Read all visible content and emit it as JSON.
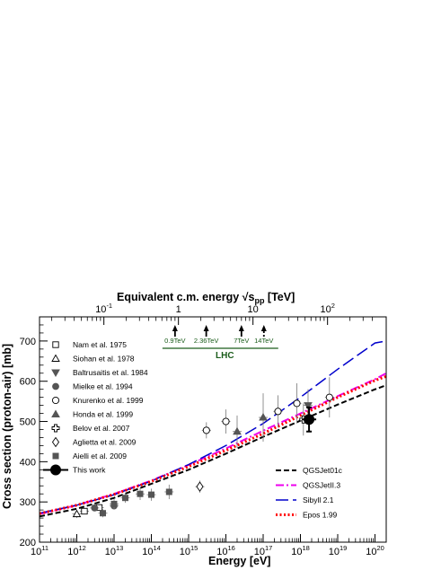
{
  "chart_data": {
    "type": "scatter",
    "xlabel": "Energy   [eV]",
    "ylabel": "Cross section (proton-air)   [mb]",
    "top_axis": {
      "label_main": "Equivalent c.m. energy ",
      "label_sqrt": "√s",
      "label_sub": "pp",
      "label_unit": "   [TeV]",
      "scale": "log",
      "ticks": [
        {
          "value": 0.1,
          "label": "10",
          "exp": "-1"
        },
        {
          "value": 1,
          "label": "1",
          "exp": ""
        },
        {
          "value": 10,
          "label": "10",
          "exp": ""
        },
        {
          "value": 100,
          "label": "10",
          "exp": "2"
        }
      ]
    },
    "x_scale": "log",
    "xlim": [
      100000000000.0,
      2e+20
    ],
    "ylim": [
      200,
      760
    ],
    "x_ticks": [
      {
        "value": 100000000000.0,
        "base": "10",
        "exp": "11"
      },
      {
        "value": 1000000000000.0,
        "base": "10",
        "exp": "12"
      },
      {
        "value": 10000000000000.0,
        "base": "10",
        "exp": "13"
      },
      {
        "value": 100000000000000.0,
        "base": "10",
        "exp": "14"
      },
      {
        "value": 1000000000000000.0,
        "base": "10",
        "exp": "15"
      },
      {
        "value": 1e+16,
        "base": "10",
        "exp": "16"
      },
      {
        "value": 1e+17,
        "base": "10",
        "exp": "17"
      },
      {
        "value": 1e+18,
        "base": "10",
        "exp": "18"
      },
      {
        "value": 1e+19,
        "base": "10",
        "exp": "19"
      },
      {
        "value": 1e+20,
        "base": "10",
        "exp": "20"
      }
    ],
    "y_ticks": [
      200,
      300,
      400,
      500,
      600,
      700
    ],
    "lhc": {
      "label": "LHC",
      "arrows": [
        {
          "sqrt_s": 0.9,
          "label": "0.9TeV",
          "dashed": false
        },
        {
          "sqrt_s": 2.36,
          "label": "2.36TeV",
          "dashed": false
        },
        {
          "sqrt_s": 7,
          "label": "7TeV",
          "dashed": false
        },
        {
          "sqrt_s": 14,
          "label": "14TeV",
          "dashed": true
        }
      ]
    },
    "data_legend": [
      {
        "name": "Nam et al. 1975",
        "marker": "open-square"
      },
      {
        "name": "Siohan et al. 1978",
        "marker": "open-triangle"
      },
      {
        "name": "Baltrusaitis et al. 1984",
        "marker": "filled-triangle-down"
      },
      {
        "name": "Mielke et al. 1994",
        "marker": "filled-circle"
      },
      {
        "name": "Knurenko et al. 1999",
        "marker": "open-circle"
      },
      {
        "name": "Honda et al. 1999",
        "marker": "filled-triangle"
      },
      {
        "name": "Belov et al. 2007",
        "marker": "open-cross"
      },
      {
        "name": "Aglietta et al. 2009",
        "marker": "open-diamond"
      },
      {
        "name": "Aielli et al. 2009",
        "marker": "filled-square"
      },
      {
        "name": "This work",
        "marker": "big-circle"
      }
    ],
    "model_legend": [
      {
        "name": "QGSJet01c",
        "color": "#000000",
        "dash": "6,3",
        "width": 2
      },
      {
        "name": "QGSJetII.3",
        "color": "#ee00ee",
        "dash": "9,3,2,3",
        "width": 2
      },
      {
        "name": "Sibyll 2.1",
        "color": "#0000cc",
        "dash": "14,5",
        "width": 1.5
      },
      {
        "name": "Epos 1.99",
        "color": "#ff0000",
        "dash": "2,2.5",
        "width": 3
      }
    ],
    "series": [
      {
        "name": "QGSJet01c",
        "x": [
          100000000000.0,
          1000000000000.0,
          10000000000000.0,
          100000000000000.0,
          1000000000000000.0,
          1e+16,
          1e+17,
          1e+18,
          1e+19,
          1e+20,
          2e+20
        ],
        "y": [
          264,
          283,
          310,
          345,
          380,
          420,
          462,
          502,
          542,
          580,
          590
        ]
      },
      {
        "name": "QGSJetII.3",
        "x": [
          100000000000.0,
          1000000000000.0,
          10000000000000.0,
          100000000000000.0,
          1000000000000000.0,
          1e+16,
          1e+17,
          1e+18,
          1e+19,
          1e+20,
          2e+20
        ],
        "y": [
          270,
          292,
          320,
          353,
          392,
          433,
          477,
          520,
          563,
          605,
          620
        ]
      },
      {
        "name": "Sibyll 2.1",
        "x": [
          100000000000.0,
          1000000000000.0,
          10000000000000.0,
          100000000000000.0,
          1000000000000000.0,
          1e+16,
          1e+17,
          1e+18,
          1e+19,
          1e+20,
          2e+20
        ],
        "y": [
          272,
          292,
          318,
          352,
          393,
          440,
          495,
          560,
          630,
          695,
          700
        ]
      },
      {
        "name": "Epos 1.99",
        "x": [
          100000000000.0,
          1000000000000.0,
          10000000000000.0,
          100000000000000.0,
          1000000000000000.0,
          1e+16,
          1e+17,
          1e+18,
          1e+19,
          1e+20,
          2e+20
        ],
        "y": [
          271,
          292,
          319,
          351,
          388,
          428,
          470,
          515,
          560,
          602,
          612
        ]
      }
    ],
    "measurements": [
      {
        "set": "Nam et al. 1975",
        "marker": "open-square",
        "points": [
          {
            "x": 1600000000000.0,
            "y": 277,
            "err": 6
          },
          {
            "x": 4000000000000.0,
            "y": 286,
            "err": 6
          }
        ]
      },
      {
        "set": "Siohan et al. 1978",
        "marker": "open-triangle",
        "points": [
          {
            "x": 1000000000000.0,
            "y": 270,
            "err": 10
          }
        ]
      },
      {
        "set": "Baltrusaitis et al. 1984",
        "marker": "filled-triangle-down",
        "points": [
          {
            "x": 1.6e+18,
            "y": 540,
            "err": 40
          }
        ]
      },
      {
        "set": "Mielke et al. 1994",
        "marker": "filled-circle",
        "points": [
          {
            "x": 3000000000000.0,
            "y": 285,
            "err": 6
          },
          {
            "x": 10000000000000.0,
            "y": 290,
            "err": 6
          }
        ]
      },
      {
        "set": "Knurenko et al. 1999",
        "marker": "open-circle",
        "points": [
          {
            "x": 3000000000000000.0,
            "y": 478,
            "err": 20
          },
          {
            "x": 1e+16,
            "y": 500,
            "err": 30
          },
          {
            "x": 2.5e+17,
            "y": 525,
            "err": 40
          },
          {
            "x": 8e+17,
            "y": 545,
            "err": 50
          },
          {
            "x": 6e+18,
            "y": 560,
            "err": 50
          }
        ]
      },
      {
        "set": "Honda et al. 1999",
        "marker": "filled-triangle",
        "points": [
          {
            "x": 2e+16,
            "y": 475,
            "err": 40
          },
          {
            "x": 1e+17,
            "y": 510,
            "err": 60
          }
        ]
      },
      {
        "set": "Belov et al. 2007",
        "marker": "open-cross",
        "points": [
          {
            "x": 1.2e+18,
            "y": 505,
            "err": 40
          }
        ]
      },
      {
        "set": "Aglietta et al. 2009",
        "marker": "open-diamond",
        "points": [
          {
            "x": 2000000000000000.0,
            "y": 338,
            "err": 15
          }
        ]
      },
      {
        "set": "Aielli et al. 2009",
        "marker": "filled-square",
        "points": [
          {
            "x": 5000000000000.0,
            "y": 272,
            "err": 10
          },
          {
            "x": 10000000000000.0,
            "y": 295,
            "err": 12
          },
          {
            "x": 20000000000000.0,
            "y": 310,
            "err": 12
          },
          {
            "x": 50000000000000.0,
            "y": 320,
            "err": 15
          },
          {
            "x": 100000000000000.0,
            "y": 318,
            "err": 15
          },
          {
            "x": 300000000000000.0,
            "y": 325,
            "err": 18
          }
        ]
      },
      {
        "set": "This work",
        "marker": "big-circle",
        "points": [
          {
            "x": 1.7e+18,
            "y": 505,
            "err": 30
          }
        ]
      }
    ]
  }
}
